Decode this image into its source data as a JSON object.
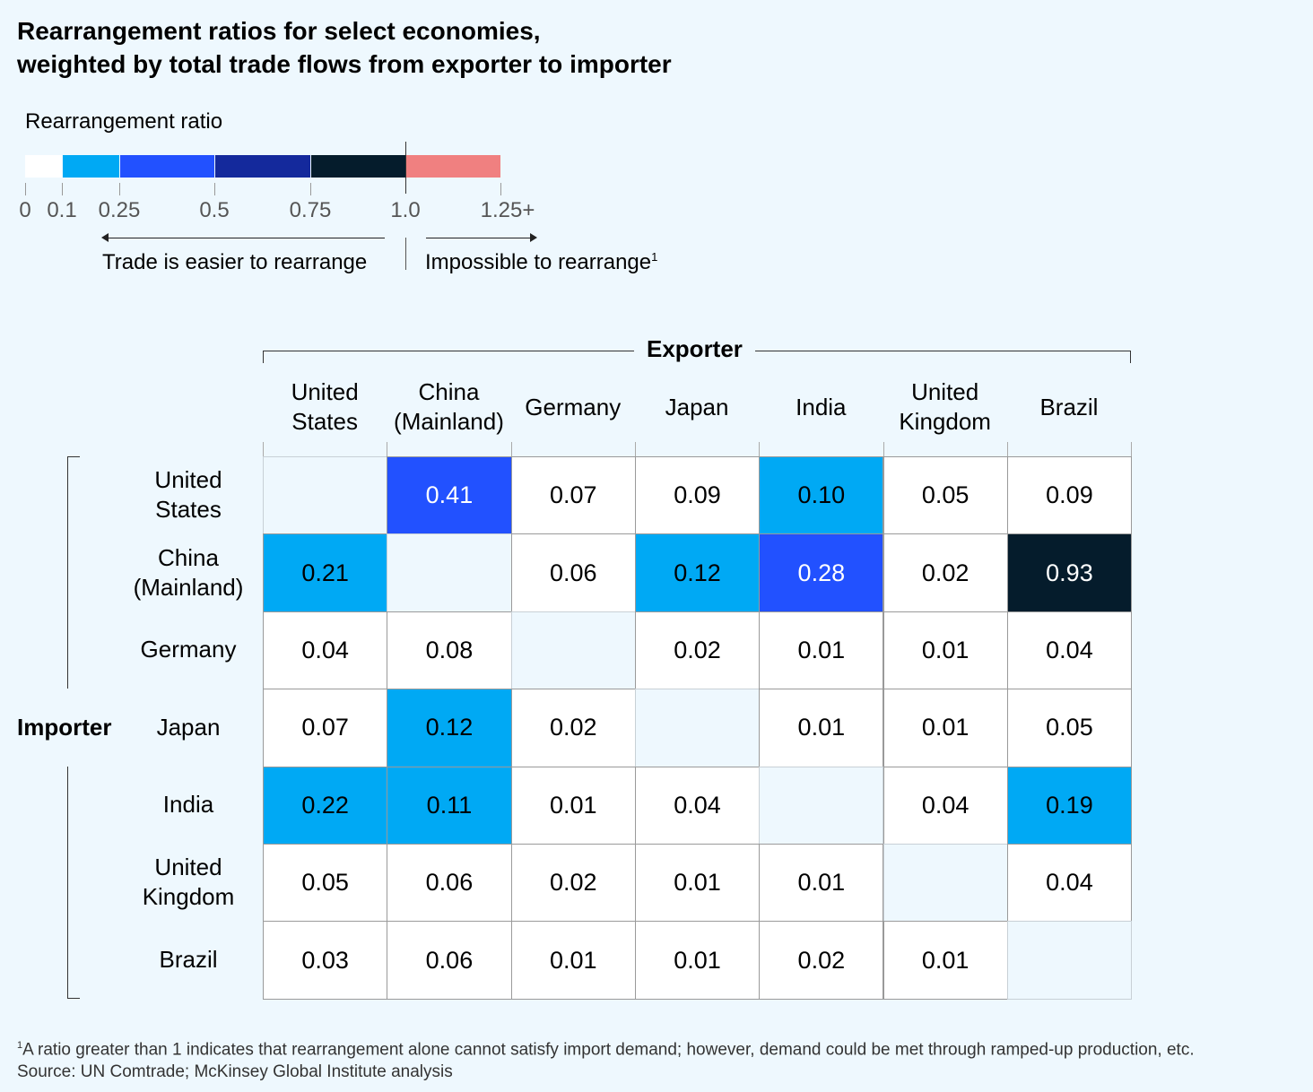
{
  "chart_data": {
    "type": "heatmap",
    "title_line1": "Rearrangement ratios for select economies,",
    "title_line2": "weighted by total trade flows from exporter to importer",
    "legend": {
      "title": "Rearrangement ratio",
      "bins": [
        {
          "from": 0,
          "to": 0.1,
          "color": "#ffffff"
        },
        {
          "from": 0.1,
          "to": 0.25,
          "color": "#00a9f4"
        },
        {
          "from": 0.25,
          "to": 0.5,
          "color": "#2251ff"
        },
        {
          "from": 0.5,
          "to": 0.75,
          "color": "#14299c"
        },
        {
          "from": 0.75,
          "to": 1.0,
          "color": "#051c2c"
        },
        {
          "from": 1.0,
          "to": 1.25,
          "color": "#f08080"
        }
      ],
      "tick_labels": [
        "0",
        "0.1",
        "0.25",
        "0.5",
        "0.75",
        "1.0",
        "1.25+"
      ],
      "left_note": "Trade is easier to rearrange",
      "right_note": "Impossible to rearrange",
      "right_note_sup": "1"
    },
    "xlabel": "Exporter",
    "ylabel": "Importer",
    "columns": [
      [
        "United",
        "States"
      ],
      [
        "China",
        "(Mainland)"
      ],
      [
        "Germany"
      ],
      [
        "Japan"
      ],
      [
        "India"
      ],
      [
        "United",
        "Kingdom"
      ],
      [
        "Brazil"
      ]
    ],
    "rows": [
      [
        "United",
        "States"
      ],
      [
        "China",
        "(Mainland)"
      ],
      [
        "Germany"
      ],
      [
        "Japan"
      ],
      [
        "India"
      ],
      [
        "United",
        "Kingdom"
      ],
      [
        "Brazil"
      ]
    ],
    "values": [
      [
        null,
        0.41,
        0.07,
        0.09,
        0.1,
        0.05,
        0.09
      ],
      [
        0.21,
        null,
        0.06,
        0.12,
        0.28,
        0.02,
        0.93
      ],
      [
        0.04,
        0.08,
        null,
        0.02,
        0.01,
        0.01,
        0.04
      ],
      [
        0.07,
        0.12,
        0.02,
        null,
        0.01,
        0.01,
        0.05
      ],
      [
        0.22,
        0.11,
        0.01,
        0.04,
        null,
        0.04,
        0.19
      ],
      [
        0.05,
        0.06,
        0.02,
        0.01,
        0.01,
        null,
        0.04
      ],
      [
        0.03,
        0.06,
        0.01,
        0.01,
        0.02,
        0.01,
        null
      ]
    ]
  },
  "footnote": {
    "sup": "1",
    "text": "A ratio greater than 1 indicates that rearrangement alone cannot satisfy import demand; however, demand could be met through ramped-up production, etc.",
    "source": "Source: UN Comtrade; McKinsey Global Institute analysis"
  }
}
